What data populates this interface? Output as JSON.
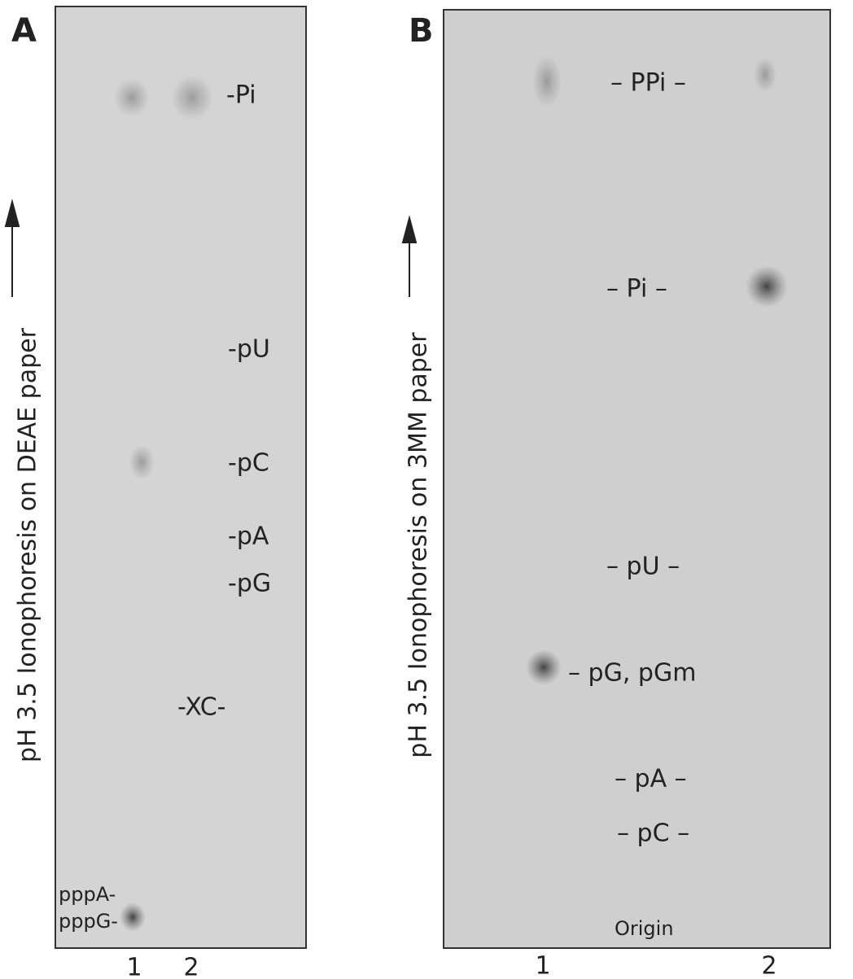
{
  "panel_a": {
    "letter": "A",
    "axis_label": "pH 3.5 Ionophoresis on DEAE paper",
    "markers": [
      "-Pi",
      "-pU",
      "-pC",
      "-pA",
      "-pG",
      "-XC-",
      "pppA-",
      "pppG-"
    ],
    "lanes": [
      "1",
      "2"
    ]
  },
  "panel_b": {
    "letter": "B",
    "axis_label": "pH 3.5 Ionophoresis on 3MM paper",
    "markers": [
      "– PPi –",
      "– Pi –",
      "– pU –",
      "– pG, pGm",
      "– pA –",
      "– pC –",
      "Origin"
    ],
    "lanes": [
      "1",
      "2"
    ]
  }
}
